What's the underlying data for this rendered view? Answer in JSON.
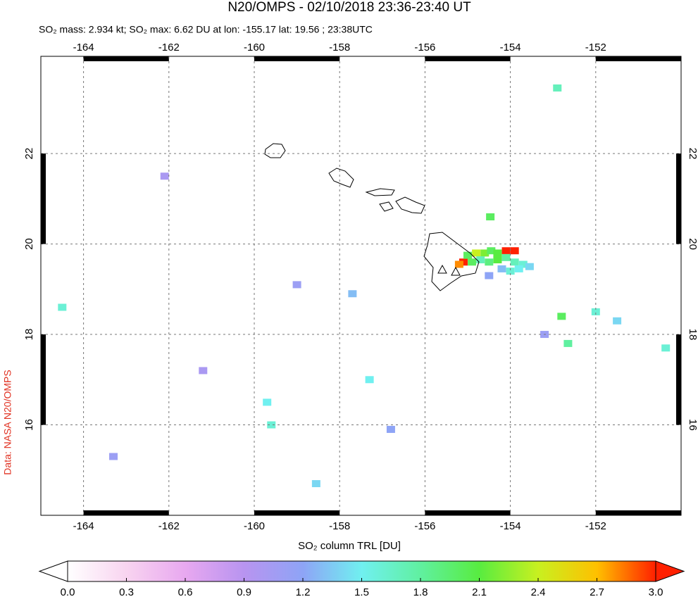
{
  "chart_data": {
    "type": "map",
    "title": "N20/OMPS - 02/10/2018 23:36-23:40 UT",
    "subtitle": "SO₂ mass: 2.934 kt; SO₂ max: 6.62 DU at lon: -155.17 lat: 19.56 ; 23:38UTC",
    "side_label": "Data: NASA N20/OMPS",
    "xlim": [
      -165,
      -150
    ],
    "ylim": [
      14,
      24.15
    ],
    "xticks": [
      -164,
      -162,
      -160,
      -158,
      -156,
      -154,
      -152
    ],
    "yticks": [
      16,
      18,
      20,
      22
    ],
    "grid": true,
    "x": [
      -155.1,
      -155.0,
      -154.8,
      -154.6,
      -154.45,
      -154.3,
      -154.1,
      -153.9,
      -155.2,
      -154.9,
      -154.7,
      -154.5,
      -154.3,
      -154.1,
      -153.9,
      -153.7,
      -153.55,
      -154.2,
      -154.0,
      -153.8,
      -154.5,
      -152.9,
      -154.47,
      -164.5,
      -150.36,
      -152.8,
      -152.0,
      -151.5,
      -159.7,
      -159.6,
      -157.7,
      -158.55,
      -157.3,
      -152.65,
      -163.3,
      -161.2,
      -159.0,
      -156.8,
      -153.2,
      -162.1
    ],
    "y": [
      19.6,
      19.75,
      19.8,
      19.8,
      19.85,
      19.8,
      19.85,
      19.85,
      19.55,
      19.6,
      19.65,
      19.6,
      19.65,
      19.7,
      19.6,
      19.55,
      19.5,
      19.45,
      19.4,
      19.45,
      19.3,
      23.45,
      20.6,
      18.6,
      17.7,
      18.4,
      18.5,
      18.3,
      16.5,
      16.0,
      18.9,
      14.7,
      17.0,
      17.8,
      15.3,
      17.2,
      19.1,
      15.9,
      18.0,
      21.5
    ],
    "values": [
      3.1,
      2.0,
      2.4,
      2.2,
      2.0,
      2.1,
      3.0,
      3.2,
      2.8,
      2.0,
      1.7,
      1.9,
      2.1,
      1.8,
      1.7,
      1.6,
      1.4,
      1.3,
      1.6,
      1.5,
      1.2,
      1.7,
      2.0,
      1.6,
      1.6,
      2.0,
      1.6,
      1.4,
      1.5,
      1.6,
      1.3,
      1.4,
      1.5,
      1.8,
      1.1,
      1.0,
      1.1,
      1.2,
      1.1,
      1.0
    ],
    "colorbar": {
      "label": "SO₂ column TRL [DU]",
      "lim": [
        0,
        3
      ],
      "ticks": [
        {
          "value": 0,
          "label": "0.0"
        },
        {
          "value": 0.3,
          "label": "0.3"
        },
        {
          "value": 0.6,
          "label": "0.6"
        },
        {
          "value": 0.9,
          "label": "0.9"
        },
        {
          "value": 1.2,
          "label": "1.2"
        },
        {
          "value": 1.5,
          "label": "1.5"
        },
        {
          "value": 1.8,
          "label": "1.8"
        },
        {
          "value": 2.1,
          "label": "2.1"
        },
        {
          "value": 2.4,
          "label": "2.4"
        },
        {
          "value": 2.7,
          "label": "2.7"
        },
        {
          "value": 3,
          "label": "3.0"
        }
      ],
      "colors": [
        "#ffffff",
        "#f8d4f0",
        "#e8a8f0",
        "#b894f0",
        "#8ea4f6",
        "#70f0f0",
        "#60f0a0",
        "#58ec40",
        "#c8f020",
        "#ffc000",
        "#ff2000"
      ]
    }
  }
}
